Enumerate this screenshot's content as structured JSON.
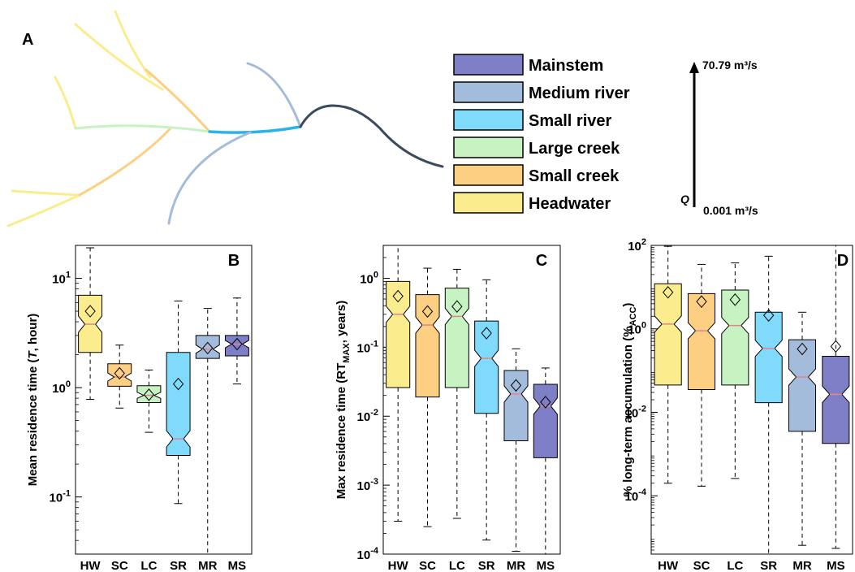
{
  "colors": {
    "headwater": "#fbed8d",
    "small_creek": "#fccf82",
    "large_creek": "#c7f2c2",
    "small_river": "#7fdafc",
    "medium_river": "#a4bcdc",
    "mainstem": "#7f7fc7",
    "main_channel": "#3b4a5c",
    "median_line": "#e0868a"
  },
  "panel_a": {
    "label": "A",
    "legend": [
      {
        "label": "Mainstem",
        "color_key": "mainstem"
      },
      {
        "label": "Medium river",
        "color_key": "medium_river"
      },
      {
        "label": "Small river",
        "color_key": "small_river"
      },
      {
        "label": "Large creek",
        "color_key": "large_creek"
      },
      {
        "label": "Small creek",
        "color_key": "small_creek"
      },
      {
        "label": "Headwater",
        "color_key": "headwater"
      }
    ],
    "q_axis": {
      "symbol": "Q",
      "top_value": "70.79 m³/s",
      "bottom_value": "0.001 m³/s"
    }
  },
  "chart_data": [
    {
      "type": "box",
      "panel": "B",
      "yscale": "log",
      "ylabel": "Mean residence time (T, hour)",
      "ylim": [
        0.03,
        20
      ],
      "yticks": [
        0.1,
        1,
        10
      ],
      "ytick_labels": [
        [
          "10",
          "-1"
        ],
        [
          "10",
          "0"
        ],
        [
          "10",
          "1"
        ]
      ],
      "categories": [
        "HW",
        "SC",
        "LC",
        "SR",
        "MR",
        "MS"
      ],
      "boxes": [
        {
          "whisker_low": 0.78,
          "q1": 2.1,
          "median": 3.8,
          "q3": 7.0,
          "whisker_high": 19.0,
          "mean": 5.0
        },
        {
          "whisker_low": 0.65,
          "q1": 1.03,
          "median": 1.25,
          "q3": 1.65,
          "whisker_high": 2.45,
          "mean": 1.35
        },
        {
          "whisker_low": 0.39,
          "q1": 0.73,
          "median": 0.85,
          "q3": 1.04,
          "whisker_high": 1.45,
          "mean": 0.86
        },
        {
          "whisker_low": 0.087,
          "q1": 0.24,
          "median": 0.34,
          "q3": 2.1,
          "whisker_high": 6.2,
          "mean": 1.08
        },
        {
          "whisker_low": 0.03,
          "q1": 1.85,
          "median": 2.25,
          "q3": 3.0,
          "whisker_high": 5.3,
          "mean": 2.3
        },
        {
          "whisker_low": 1.08,
          "q1": 1.95,
          "median": 2.5,
          "q3": 3.0,
          "whisker_high": 6.6,
          "mean": 2.5
        }
      ]
    },
    {
      "type": "box",
      "panel": "C",
      "yscale": "log",
      "ylabel": "Max residence time (RT_MAX, years)",
      "ylim": [
        0.0001,
        3
      ],
      "yticks": [
        0.0001,
        0.001,
        0.01,
        0.1,
        1
      ],
      "ytick_labels": [
        [
          "10",
          "-4"
        ],
        [
          "10",
          "-3"
        ],
        [
          "10",
          "-2"
        ],
        [
          "10",
          "-1"
        ],
        [
          "10",
          "0"
        ]
      ],
      "categories": [
        "HW",
        "SC",
        "LC",
        "SR",
        "MR",
        "MS"
      ],
      "boxes": [
        {
          "whisker_low": 0.0003,
          "q1": 0.026,
          "median": 0.3,
          "q3": 0.9,
          "whisker_high": 3.0,
          "mean": 0.55
        },
        {
          "whisker_low": 0.00025,
          "q1": 0.019,
          "median": 0.21,
          "q3": 0.58,
          "whisker_high": 1.4,
          "mean": 0.33
        },
        {
          "whisker_low": 0.00033,
          "q1": 0.026,
          "median": 0.28,
          "q3": 0.72,
          "whisker_high": 1.35,
          "mean": 0.39
        },
        {
          "whisker_low": 0.00016,
          "q1": 0.011,
          "median": 0.069,
          "q3": 0.24,
          "whisker_high": 0.95,
          "mean": 0.16
        },
        {
          "whisker_low": 0.00011,
          "q1": 0.0044,
          "median": 0.021,
          "q3": 0.046,
          "whisker_high": 0.095,
          "mean": 0.028
        },
        {
          "whisker_low": 0.0001,
          "q1": 0.0025,
          "median": 0.014,
          "q3": 0.029,
          "whisker_high": 0.05,
          "mean": 0.016
        }
      ]
    },
    {
      "type": "box",
      "panel": "D",
      "yscale": "log",
      "ylabel": "% long-term accumulation (%ACC)",
      "ylim": [
        4e-06,
        100
      ],
      "yticks": [
        0.0001,
        0.01,
        1,
        100
      ],
      "ytick_labels": [
        [
          "10",
          "-4"
        ],
        [
          "10",
          "-2"
        ],
        [
          "10",
          "0"
        ],
        [
          "10",
          "2"
        ]
      ],
      "categories": [
        "HW",
        "SC",
        "LC",
        "SR",
        "MR",
        "MS"
      ],
      "boxes": [
        {
          "whisker_low": 0.0002,
          "q1": 0.045,
          "median": 1.3,
          "q3": 12.0,
          "whisker_high": 95.0,
          "mean": 7.5
        },
        {
          "whisker_low": 0.00017,
          "q1": 0.035,
          "median": 0.9,
          "q3": 7.0,
          "whisker_high": 35.0,
          "mean": 4.5
        },
        {
          "whisker_low": 0.00026,
          "q1": 0.045,
          "median": 1.2,
          "q3": 8.5,
          "whisker_high": 38.0,
          "mean": 5.0
        },
        {
          "whisker_low": 4e-06,
          "q1": 0.017,
          "median": 0.34,
          "q3": 2.5,
          "whisker_high": 55.0,
          "mean": 2.1
        },
        {
          "whisker_low": 6.5e-06,
          "q1": 0.0035,
          "median": 0.07,
          "q3": 0.55,
          "whisker_high": 2.5,
          "mean": 0.33
        },
        {
          "whisker_low": 5.5e-06,
          "q1": 0.0018,
          "median": 0.027,
          "q3": 0.22,
          "whisker_high": 100.0,
          "mean": 0.38
        }
      ]
    }
  ]
}
